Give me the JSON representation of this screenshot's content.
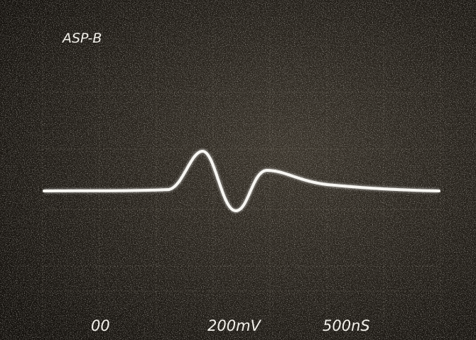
{
  "label": "ASP-B",
  "readout": {
    "channel": "00",
    "volts_per_div": "200mV",
    "time_per_div": "500nS"
  }
}
